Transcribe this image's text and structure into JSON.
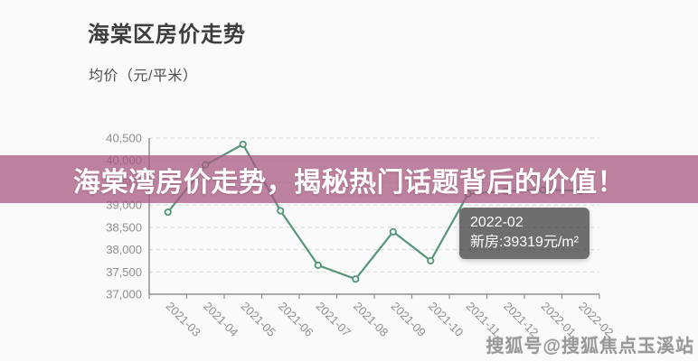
{
  "header": {
    "title": "海棠区房价走势",
    "subtitle": "均价（元/平米）"
  },
  "banner": {
    "text": "海棠湾房价走势，揭秘热门话题背后的价值！",
    "bg_rgba": "rgba(168,90,128,0.75)"
  },
  "tooltip": {
    "date": "2022-02",
    "value_line": "新房:39319元/m²",
    "bg_rgba": "rgba(50,50,50,0.7)"
  },
  "watermark": {
    "text": "搜狐号@搜狐焦点玉溪站"
  },
  "chart_data": {
    "type": "line",
    "title": "海棠区房价走势",
    "ylabel": "均价（元/平米）",
    "series_name": "新房",
    "categories": [
      "2021-03",
      "2021-04",
      "2021-05",
      "2021-06",
      "2021-07",
      "2021-08",
      "2021-09",
      "2021-10",
      "2021-11",
      "2021-12",
      "2022-01",
      "2022-02"
    ],
    "values": [
      38840,
      39900,
      40360,
      38870,
      37650,
      37340,
      38400,
      37750,
      39250,
      39310,
      39340,
      39319
    ],
    "ylim": [
      37000,
      40500
    ],
    "ytick_step": 500,
    "ytick_labels": [
      "37,000",
      "37,500",
      "38,000",
      "38,500",
      "39,000",
      "39,500",
      "40,000",
      "40,500"
    ],
    "grid": true,
    "legend": "none",
    "line_color": "#569678",
    "marker_fill": "#eef6f1",
    "grid_color": "#d8d8d8",
    "axis_color": "#8f8f8f",
    "tick_label_color": "#8f8f8f",
    "highlight": {
      "category": "2022-02",
      "value": 39319
    }
  }
}
